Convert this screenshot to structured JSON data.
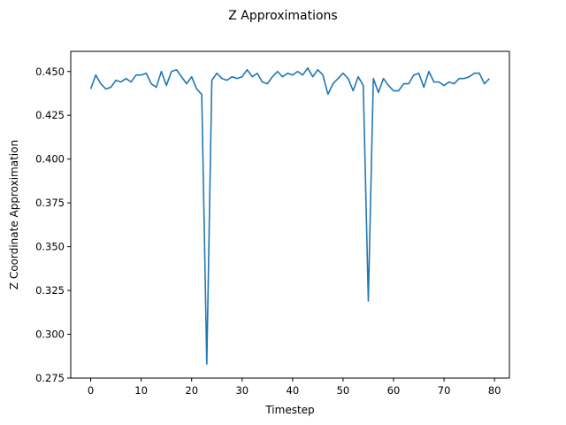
{
  "chart_data": {
    "type": "line",
    "title": "Z Approximations",
    "xlabel": "Timestep",
    "ylabel": "Z Coordinate Approximation",
    "xlim": [
      -3.95,
      82.95
    ],
    "ylim": [
      0.275,
      0.4615
    ],
    "xticks": [
      0,
      10,
      20,
      30,
      40,
      50,
      60,
      70,
      80
    ],
    "yticks": [
      0.275,
      0.3,
      0.325,
      0.35,
      0.375,
      0.4,
      0.425,
      0.45
    ],
    "ytick_labels": [
      "0.275",
      "0.300",
      "0.325",
      "0.350",
      "0.375",
      "0.400",
      "0.425",
      "0.450"
    ],
    "grid": false,
    "colors": {
      "series": "#1f77b4"
    },
    "series": [
      {
        "x": [
          0,
          1,
          2,
          3,
          4,
          5,
          6,
          7,
          8,
          9,
          10,
          11,
          12,
          13,
          14,
          15,
          16,
          17,
          18,
          19,
          20,
          21,
          22,
          23,
          24,
          25,
          26,
          27,
          28,
          29,
          30,
          31,
          32,
          33,
          34,
          35,
          36,
          37,
          38,
          39,
          40,
          41,
          42,
          43,
          44,
          45,
          46,
          47,
          48,
          49,
          50,
          51,
          52,
          53,
          54,
          55,
          56,
          57,
          58,
          59,
          60,
          61,
          62,
          63,
          64,
          65,
          66,
          67,
          68,
          69,
          70,
          71,
          72,
          73,
          74,
          75,
          76,
          77,
          78,
          79
        ],
        "values": [
          0.44,
          0.448,
          0.443,
          0.44,
          0.441,
          0.445,
          0.444,
          0.446,
          0.444,
          0.448,
          0.448,
          0.449,
          0.443,
          0.441,
          0.45,
          0.442,
          0.45,
          0.451,
          0.447,
          0.443,
          0.447,
          0.44,
          0.437,
          0.283,
          0.445,
          0.449,
          0.446,
          0.445,
          0.447,
          0.446,
          0.447,
          0.451,
          0.447,
          0.449,
          0.444,
          0.443,
          0.447,
          0.45,
          0.447,
          0.449,
          0.448,
          0.45,
          0.448,
          0.452,
          0.447,
          0.451,
          0.448,
          0.437,
          0.443,
          0.446,
          0.449,
          0.446,
          0.439,
          0.447,
          0.442,
          0.319,
          0.446,
          0.438,
          0.446,
          0.442,
          0.439,
          0.439,
          0.443,
          0.443,
          0.448,
          0.449,
          0.441,
          0.45,
          0.444,
          0.444,
          0.442,
          0.444,
          0.443,
          0.446,
          0.446,
          0.447,
          0.449,
          0.449,
          0.443,
          0.446
        ]
      }
    ]
  }
}
